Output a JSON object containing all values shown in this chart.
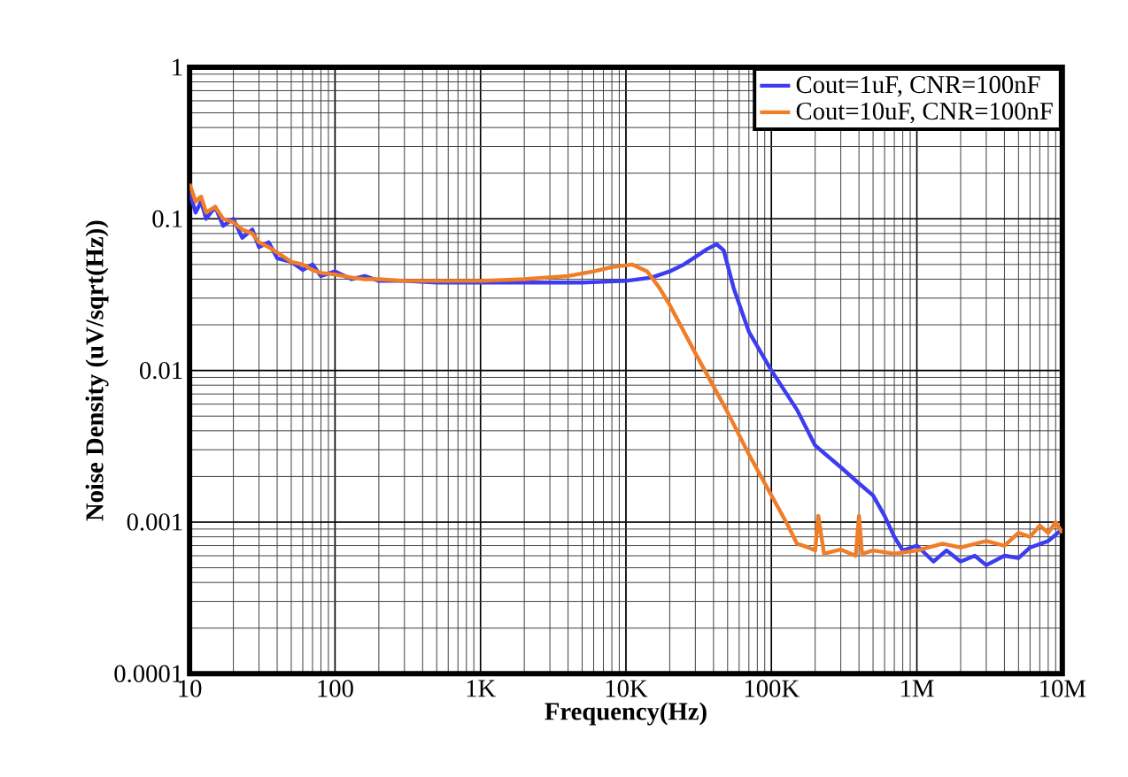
{
  "chart_data": {
    "type": "line",
    "xlabel": "Frequency(Hz)",
    "ylabel": "Noise Density (uV/sqrt(Hz))",
    "log": "xy",
    "grid": true,
    "legend": "top right",
    "xlim": [
      10,
      10000000
    ],
    "ylim": [
      0.0001,
      1
    ],
    "xticks": [
      10,
      100,
      {
        "value": 1000,
        "label": "1K"
      },
      {
        "value": 10000,
        "label": "10K"
      },
      {
        "value": 100000,
        "label": "100K"
      },
      {
        "value": 1000000,
        "label": "1M"
      },
      {
        "value": 10000000,
        "label": "10M"
      }
    ],
    "yticks": [
      0.0001,
      0.001,
      0.01,
      0.1,
      1
    ],
    "series": [
      {
        "name": "Cout=1uF, CNR=100nF",
        "color": "#3c3cf0",
        "x": [
          10,
          11,
          12,
          13,
          15,
          17,
          20,
          23,
          27,
          30,
          35,
          40,
          50,
          60,
          70,
          80,
          100,
          130,
          160,
          200,
          300,
          500,
          1000,
          2000,
          5000,
          10000,
          15000,
          20000,
          25000,
          30000,
          36000,
          42000,
          47000,
          55000,
          70000,
          100000,
          150000,
          200000,
          300000,
          400000,
          500000,
          600000,
          700000,
          800000,
          1000000,
          1300000,
          1600000,
          2000000,
          2500000,
          3000000,
          4000000,
          5000000,
          6000000,
          8000000,
          10000000
        ],
        "values": [
          0.15,
          0.11,
          0.13,
          0.1,
          0.12,
          0.09,
          0.1,
          0.075,
          0.085,
          0.065,
          0.07,
          0.055,
          0.052,
          0.046,
          0.05,
          0.042,
          0.045,
          0.04,
          0.042,
          0.039,
          0.039,
          0.038,
          0.038,
          0.038,
          0.038,
          0.039,
          0.041,
          0.045,
          0.05,
          0.056,
          0.063,
          0.068,
          0.062,
          0.035,
          0.018,
          0.01,
          0.0055,
          0.0032,
          0.0023,
          0.0018,
          0.0015,
          0.0011,
          0.0008,
          0.00065,
          0.0007,
          0.00055,
          0.00065,
          0.00055,
          0.0006,
          0.00052,
          0.0006,
          0.00058,
          0.00068,
          0.00075,
          0.0009
        ]
      },
      {
        "name": "Cout=10uF, CNR=100nF",
        "color": "#f07d28",
        "x": [
          10,
          11,
          12,
          13,
          15,
          17,
          20,
          23,
          27,
          30,
          35,
          40,
          50,
          60,
          70,
          80,
          100,
          130,
          160,
          200,
          300,
          500,
          1000,
          2000,
          4000,
          6000,
          8000,
          11000,
          14000,
          17000,
          20000,
          30000,
          50000,
          70000,
          100000,
          130000,
          150000,
          180000,
          200000,
          210000,
          230000,
          300000,
          380000,
          400000,
          420000,
          500000,
          700000,
          1000000,
          1500000,
          2000000,
          3000000,
          4000000,
          5000000,
          6000000,
          7000000,
          8000000,
          9000000,
          10000000
        ],
        "values": [
          0.17,
          0.13,
          0.14,
          0.11,
          0.12,
          0.1,
          0.095,
          0.085,
          0.08,
          0.07,
          0.065,
          0.06,
          0.052,
          0.05,
          0.046,
          0.044,
          0.043,
          0.041,
          0.04,
          0.04,
          0.039,
          0.039,
          0.039,
          0.04,
          0.042,
          0.045,
          0.048,
          0.05,
          0.045,
          0.035,
          0.027,
          0.013,
          0.0053,
          0.0028,
          0.0015,
          0.00095,
          0.00072,
          0.00068,
          0.00065,
          0.0011,
          0.00062,
          0.00066,
          0.0006,
          0.0011,
          0.00062,
          0.00065,
          0.00062,
          0.00065,
          0.00072,
          0.00068,
          0.00075,
          0.0007,
          0.00085,
          0.0008,
          0.00095,
          0.00085,
          0.001,
          0.00085
        ]
      }
    ]
  }
}
